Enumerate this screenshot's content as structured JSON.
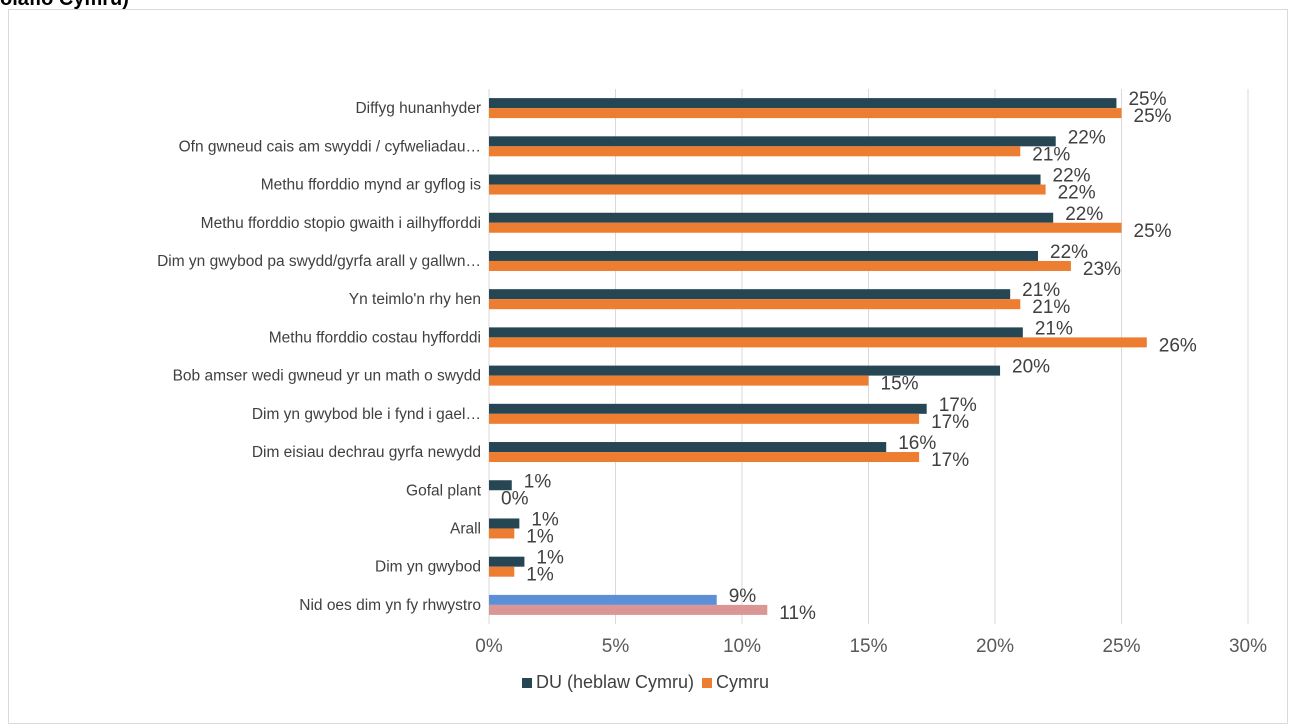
{
  "title": "olaflo Cymru)",
  "chart_data": {
    "type": "bar",
    "orientation": "horizontal",
    "categories": [
      "Diffyg hunanhyder",
      "Ofn gwneud cais am swyddi / cyfweliadau…",
      "Methu fforddio mynd ar gyflog is",
      "Methu fforddio stopio gwaith  i ailhyfforddi",
      "Dim yn gwybod pa swydd/gyrfa arall y gallwn…",
      "Yn teimlo'n rhy hen",
      "Methu fforddio costau hyfforddi",
      "Bob amser wedi gwneud yr un math o swydd",
      "Dim yn gwybod ble i fynd i gael…",
      "Dim eisiau dechrau gyrfa newydd",
      "Gofal plant",
      "Arall",
      "Dim yn gwybod",
      "Nid oes dim yn fy rhwystro"
    ],
    "series": [
      {
        "name": "DU (heblaw Cymru)",
        "color": "#264653",
        "values": [
          24.8,
          22.4,
          21.8,
          22.3,
          21.7,
          20.6,
          21.1,
          20.2,
          17.3,
          15.7,
          0.9,
          1.2,
          1.4,
          9.0
        ],
        "labels": [
          "25%",
          "22%",
          "22%",
          "22%",
          "22%",
          "21%",
          "21%",
          "20%",
          "17%",
          "16%",
          "1%",
          "1%",
          "1%",
          "9%"
        ]
      },
      {
        "name": "Cymru",
        "color": "#ed7d31",
        "values": [
          25.0,
          21.0,
          22.0,
          25.0,
          23.0,
          21.0,
          26.0,
          15.0,
          17.0,
          17.0,
          0.0,
          1.0,
          1.0,
          11.0
        ],
        "labels": [
          "25%",
          "21%",
          "22%",
          "25%",
          "23%",
          "21%",
          "26%",
          "15%",
          "17%",
          "17%",
          "0%",
          "1%",
          "1%",
          "11%"
        ]
      }
    ],
    "highlight": {
      "category_index": 13,
      "colors": [
        "#5b8fd8",
        "#d99694"
      ]
    },
    "xlim": [
      0,
      30
    ],
    "x_ticks": [
      "0%",
      "5%",
      "10%",
      "15%",
      "20%",
      "25%",
      "30%"
    ],
    "grid": true,
    "legend_position": "bottom"
  }
}
